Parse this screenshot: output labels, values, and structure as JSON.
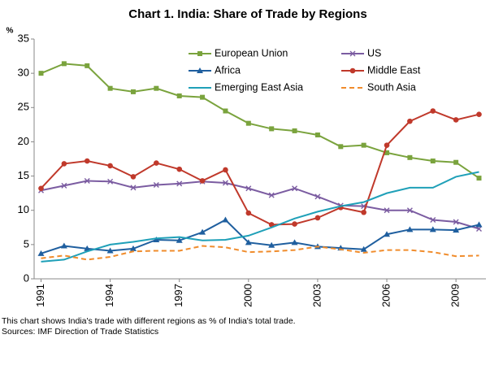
{
  "chart_data": {
    "type": "line",
    "title": "Chart 1. India: Share of Trade by Regions",
    "y_unit": "%",
    "notes": [
      "This chart shows India's trade with different regions as % of India's total trade.",
      "Sources: IMF Direction of Trade Statistics"
    ],
    "x": [
      1991,
      1992,
      1993,
      1994,
      1995,
      1996,
      1997,
      1998,
      1999,
      2000,
      2001,
      2002,
      2003,
      2004,
      2005,
      2006,
      2007,
      2008,
      2009,
      2010
    ],
    "xlim": [
      1990.7,
      2010.3
    ],
    "xticks": [
      1991,
      1994,
      1997,
      2000,
      2003,
      2006,
      2009
    ],
    "ylim": [
      0,
      35
    ],
    "yticks": [
      0,
      5,
      10,
      15,
      20,
      25,
      30,
      35
    ],
    "grid": false,
    "series": [
      {
        "name": "European Union",
        "color": "#7aa33d",
        "marker": "square",
        "dash": false,
        "values": [
          30.0,
          31.4,
          31.1,
          27.8,
          27.3,
          27.8,
          26.7,
          26.5,
          24.5,
          22.7,
          21.9,
          21.6,
          21.0,
          19.3,
          19.5,
          18.4,
          17.7,
          17.2,
          17.0,
          14.7
        ]
      },
      {
        "name": "US",
        "color": "#7b5ca1",
        "marker": "x",
        "dash": false,
        "values": [
          12.9,
          13.6,
          14.3,
          14.2,
          13.3,
          13.7,
          13.9,
          14.2,
          14.0,
          13.2,
          12.2,
          13.2,
          12.0,
          10.7,
          10.6,
          10.0,
          10.0,
          8.6,
          8.3,
          7.3
        ]
      },
      {
        "name": "Africa",
        "color": "#1f5f9f",
        "marker": "triangle",
        "dash": false,
        "values": [
          3.7,
          4.8,
          4.4,
          4.1,
          4.4,
          5.7,
          5.6,
          6.8,
          8.6,
          5.3,
          4.9,
          5.3,
          4.7,
          4.5,
          4.3,
          6.5,
          7.2,
          7.2,
          7.1,
          7.9
        ]
      },
      {
        "name": "Middle East",
        "color": "#c0392b",
        "marker": "circle",
        "dash": false,
        "values": [
          13.2,
          16.8,
          17.2,
          16.5,
          14.9,
          16.9,
          16.0,
          14.3,
          15.9,
          9.6,
          7.9,
          8.0,
          8.9,
          10.4,
          9.7,
          19.5,
          23.0,
          24.5,
          23.2,
          24.0
        ]
      },
      {
        "name": "Emerging East Asia",
        "color": "#1fa0b8",
        "marker": "none",
        "dash": false,
        "values": [
          2.5,
          2.8,
          4.0,
          5.0,
          5.4,
          5.9,
          6.1,
          5.6,
          5.7,
          6.3,
          7.5,
          8.8,
          9.8,
          10.6,
          11.2,
          12.5,
          13.3,
          13.3,
          14.9,
          15.6
        ]
      },
      {
        "name": "South Asia",
        "color": "#f08c2c",
        "marker": "none",
        "dash": true,
        "values": [
          3.0,
          3.4,
          2.8,
          3.2,
          4.0,
          4.1,
          4.1,
          4.8,
          4.6,
          3.9,
          4.0,
          4.2,
          4.7,
          4.3,
          3.8,
          4.2,
          4.2,
          3.9,
          3.3,
          3.4
        ]
      }
    ]
  }
}
